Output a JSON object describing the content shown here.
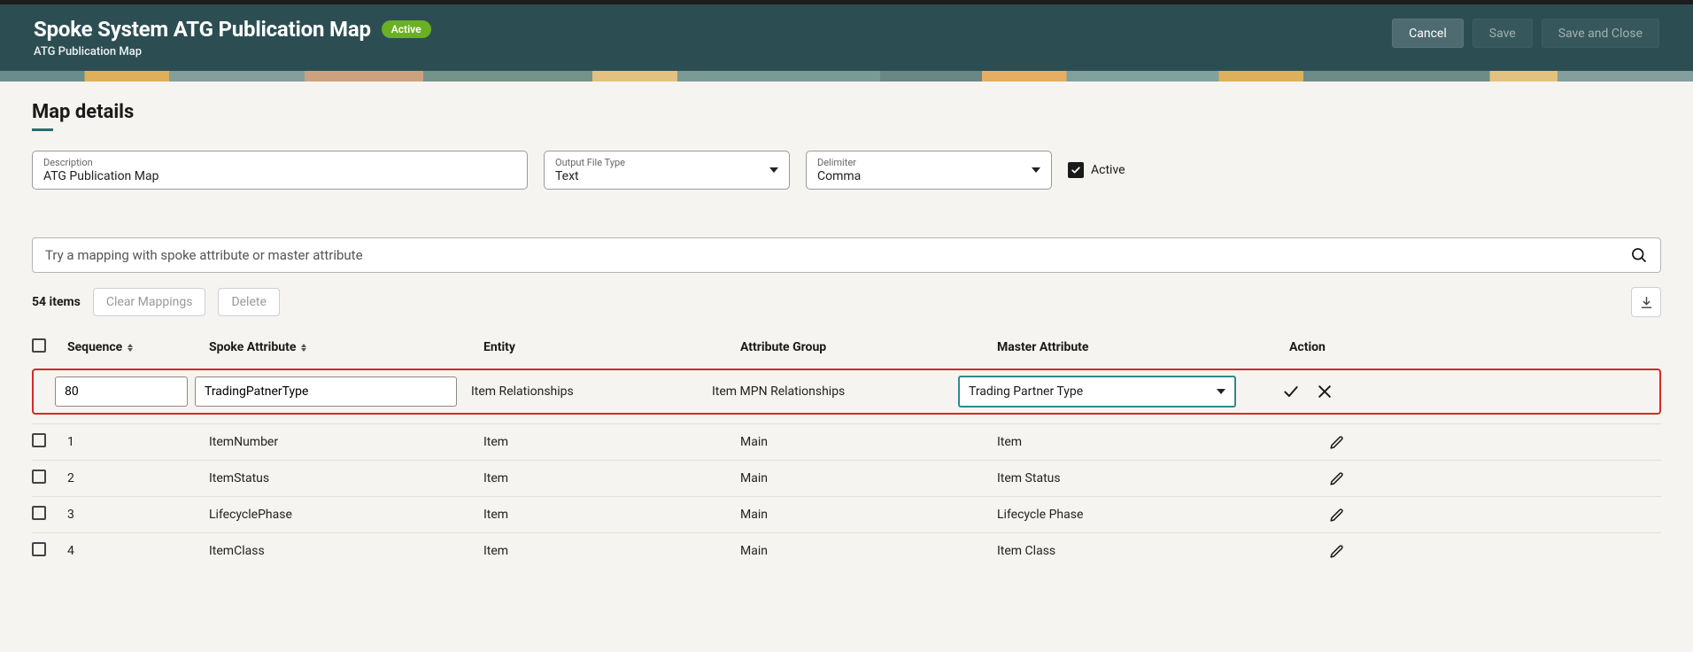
{
  "header": {
    "title": "Spoke System ATG Publication Map",
    "status": "Active",
    "subtitle": "ATG Publication Map",
    "buttons": {
      "cancel": "Cancel",
      "save": "Save",
      "save_close": "Save and Close"
    }
  },
  "section_title": "Map details",
  "form": {
    "description": {
      "label": "Description",
      "value": "ATG Publication Map"
    },
    "output_file_type": {
      "label": "Output File Type",
      "value": "Text"
    },
    "delimiter": {
      "label": "Delimiter",
      "value": "Comma"
    },
    "active": {
      "label": "Active",
      "checked": true
    }
  },
  "search": {
    "placeholder": "Try a mapping with spoke attribute or master attribute"
  },
  "toolbar": {
    "items_count": "54 items",
    "clear_mappings": "Clear Mappings",
    "delete": "Delete"
  },
  "columns": {
    "sequence": "Sequence",
    "spoke_attribute": "Spoke Attribute",
    "entity": "Entity",
    "attribute_group": "Attribute Group",
    "master_attribute": "Master Attribute",
    "action": "Action"
  },
  "edit_row": {
    "sequence": "80",
    "spoke_attribute": "TradingPatnerType",
    "entity": "Item Relationships",
    "attribute_group": "Item MPN Relationships",
    "master_attribute": "Trading Partner Type"
  },
  "rows": [
    {
      "sequence": "1",
      "spoke": "ItemNumber",
      "entity": "Item",
      "group": "Main",
      "master": "Item"
    },
    {
      "sequence": "2",
      "spoke": "ItemStatus",
      "entity": "Item",
      "group": "Main",
      "master": "Item Status"
    },
    {
      "sequence": "3",
      "spoke": "LifecyclePhase",
      "entity": "Item",
      "group": "Main",
      "master": "Lifecycle Phase"
    },
    {
      "sequence": "4",
      "spoke": "ItemClass",
      "entity": "Item",
      "group": "Main",
      "master": "Item Class"
    }
  ]
}
